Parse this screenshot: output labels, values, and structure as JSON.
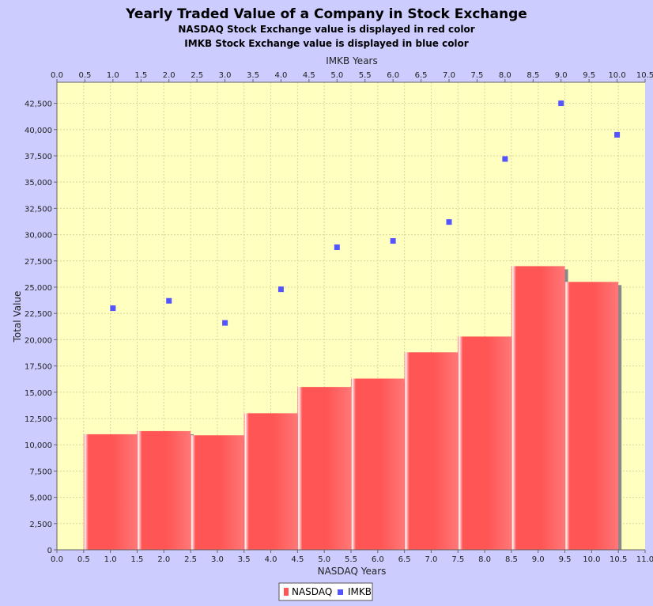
{
  "chart_data": {
    "type": "bar",
    "title": "Yearly Traded Value of a Company in Stock Exchange",
    "subtitles": [
      "NASDAQ Stock Exchange value is displayed in red color",
      "IMKB Stock Exchange value is displayed in blue color"
    ],
    "xlabel": "NASDAQ Years",
    "x2label": "IMKB Years",
    "ylabel": "Total Value",
    "xlim": [
      0,
      11
    ],
    "x2lim": [
      0,
      10.5
    ],
    "ylim": [
      0,
      44500
    ],
    "x_ticks": [
      0.0,
      0.5,
      1.0,
      1.5,
      2.0,
      2.5,
      3.0,
      3.5,
      4.0,
      4.5,
      5.0,
      5.5,
      6.0,
      6.5,
      7.0,
      7.5,
      8.0,
      8.5,
      9.0,
      9.5,
      10.0,
      10.5,
      11.0
    ],
    "x_tick_labels": [
      "0.0",
      "0.5",
      "1.0",
      "1.5",
      "2.0",
      "2.5",
      "3.0",
      "3.5",
      "4.0",
      "4.5",
      "5.0",
      "5.5",
      "6.0",
      "6.5",
      "7.0",
      "7.5",
      "8.0",
      "8.5",
      "9.0",
      "9.5",
      "10.0",
      "10.5",
      "11.0"
    ],
    "x2_ticks": [
      0.0,
      0.5,
      1.0,
      1.5,
      2.0,
      2.5,
      3.0,
      3.5,
      4.0,
      4.5,
      5.0,
      5.5,
      6.0,
      6.5,
      7.0,
      7.5,
      8.0,
      8.5,
      9.0,
      9.5,
      10.0,
      10.5
    ],
    "x2_tick_labels": [
      "0.0",
      "0.5",
      "1.0",
      "1.5",
      "2.0",
      "2.5",
      "3.0",
      "3.5",
      "4.0",
      "4.5",
      "5.0",
      "5.5",
      "6.0",
      "6.5",
      "7.0",
      "7.5",
      "8.0",
      "8.5",
      "9.0",
      "9.5",
      "10.0",
      "10.5"
    ],
    "y_ticks": [
      0,
      2500,
      5000,
      7500,
      10000,
      12500,
      15000,
      17500,
      20000,
      22500,
      25000,
      27500,
      30000,
      32500,
      35000,
      37500,
      40000,
      42500
    ],
    "y_tick_labels": [
      "0",
      "2,500",
      "5,000",
      "7,500",
      "10,000",
      "12,500",
      "15,000",
      "17,500",
      "20,000",
      "22,500",
      "25,000",
      "27,500",
      "30,000",
      "32,500",
      "35,000",
      "37,500",
      "40,000",
      "42,500"
    ],
    "grid": true,
    "legend": "bottom",
    "series": [
      {
        "name": "NASDAQ",
        "type": "bar",
        "axis": "bottom",
        "color": "#ff5555",
        "x": [
          1,
          2,
          3,
          4,
          5,
          6,
          7,
          8,
          9,
          10
        ],
        "bar_width": 1.0,
        "values": [
          11000,
          11300,
          10900,
          13000,
          15500,
          16300,
          18800,
          20300,
          27000,
          25500
        ]
      },
      {
        "name": "IMKB",
        "type": "scatter",
        "axis": "top",
        "color": "#5555ff",
        "x": [
          1,
          2,
          3,
          4,
          5,
          6,
          7,
          8,
          9,
          10
        ],
        "values": [
          23000,
          23700,
          21600,
          24800,
          28800,
          29400,
          31200,
          37200,
          42500,
          39500
        ]
      }
    ],
    "plot_background": "#ffffc0",
    "page_background": "#ccccff"
  }
}
